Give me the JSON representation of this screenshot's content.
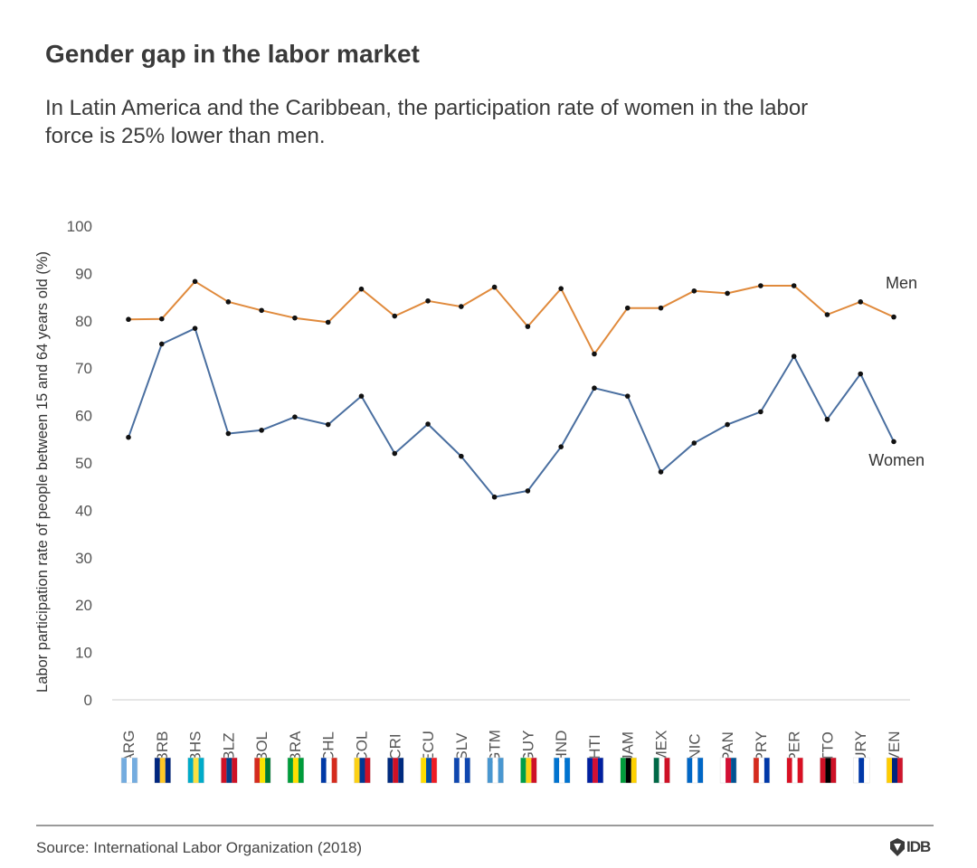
{
  "header": {
    "title": "Gender gap in the labor market",
    "subtitle": "In Latin America and the Caribbean, the participation rate of women in the labor force is 25% lower than men."
  },
  "footer": {
    "source": "Source: International Labor Organization (2018)",
    "logo_text": "IDB"
  },
  "colors": {
    "men": "#e08a3c",
    "women": "#4a6fa0",
    "marker": "#111111",
    "axis": "#cccccc",
    "tick_text": "#555555"
  },
  "chart_data": {
    "type": "line",
    "ylabel": "Labor participation rate of people between 15 and 64 years old (%)",
    "xlabel": "",
    "ylim": [
      0,
      100
    ],
    "yticks": [
      0,
      10,
      20,
      30,
      40,
      50,
      60,
      70,
      80,
      90,
      100
    ],
    "grid": false,
    "categories": [
      "ARG",
      "BRB",
      "BHS",
      "BLZ",
      "BOL",
      "BRA",
      "CHL",
      "COL",
      "CRI",
      "ECU",
      "SLV",
      "GTM",
      "GUY",
      "HND",
      "HTI",
      "JAM",
      "MEX",
      "NIC",
      "PAN",
      "PRY",
      "PER",
      "TTO",
      "URY",
      "VEN"
    ],
    "series": [
      {
        "name": "Men",
        "color": "#e08a3c",
        "values": [
          80.3,
          80.4,
          88.3,
          84.0,
          82.2,
          80.6,
          79.7,
          86.7,
          81.0,
          84.2,
          83.0,
          87.1,
          78.8,
          86.8,
          73.0,
          82.7,
          82.7,
          86.3,
          85.8,
          87.4,
          87.4,
          81.3,
          84.0,
          80.8
        ]
      },
      {
        "name": "Women",
        "color": "#4a6fa0",
        "values": [
          55.4,
          75.1,
          78.4,
          56.2,
          56.9,
          59.7,
          58.1,
          64.1,
          52.0,
          58.2,
          51.4,
          42.8,
          44.1,
          53.4,
          65.8,
          64.1,
          48.1,
          54.2,
          58.1,
          60.8,
          72.5,
          59.2,
          68.8,
          54.5
        ]
      }
    ],
    "annotations": [
      {
        "text": "Men",
        "series": "Men"
      },
      {
        "text": "Women",
        "series": "Women"
      }
    ]
  }
}
